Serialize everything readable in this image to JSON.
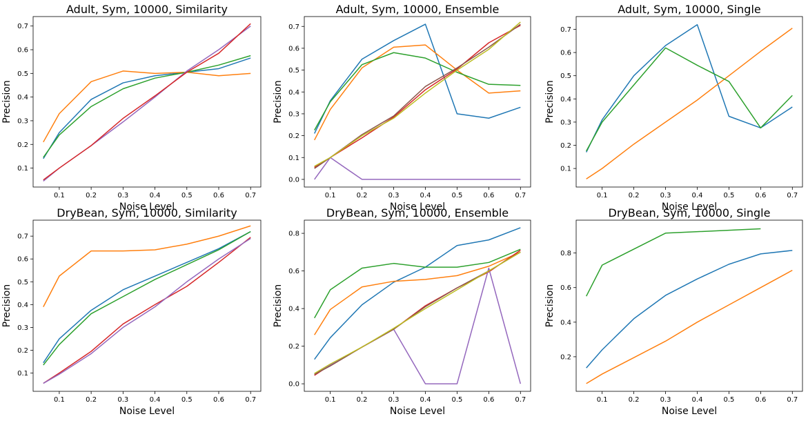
{
  "colors": {
    "blue": "#1f77b4",
    "orange": "#ff7f0e",
    "green": "#2ca02c",
    "red": "#d62728",
    "purple": "#9467bd",
    "brown": "#8c564b",
    "olive": "#bcbd22"
  },
  "chart_data": [
    {
      "type": "line",
      "title": "Adult, Sym, 10000, Similarity",
      "xlabel": "Noise Level",
      "ylabel": "Precision",
      "grid": false,
      "xlim": [
        0.018,
        0.732
      ],
      "ylim": [
        0.02,
        0.74
      ],
      "xticks": [
        0.1,
        0.2,
        0.3,
        0.4,
        0.5,
        0.6,
        0.7
      ],
      "xtick_labels": [
        "0.1",
        "0.2",
        "0.3",
        "0.4",
        "0.5",
        "0.6",
        "0.7"
      ],
      "yticks": [
        0.1,
        0.2,
        0.3,
        0.4,
        0.5,
        0.6,
        0.7
      ],
      "ytick_labels": [
        "0.1",
        "0.2",
        "0.3",
        "0.4",
        "0.5",
        "0.6",
        "0.7"
      ],
      "x": [
        0.05,
        0.1,
        0.2,
        0.3,
        0.4,
        0.5,
        0.6,
        0.7
      ],
      "series": [
        {
          "color": "#1f77b4",
          "values": [
            0.14,
            0.25,
            0.39,
            0.46,
            0.49,
            0.505,
            0.52,
            0.565
          ]
        },
        {
          "color": "#ff7f0e",
          "values": [
            0.21,
            0.33,
            0.465,
            0.51,
            0.5,
            0.505,
            0.49,
            0.5
          ]
        },
        {
          "color": "#2ca02c",
          "values": [
            0.145,
            0.24,
            0.36,
            0.435,
            0.48,
            0.505,
            0.535,
            0.575
          ]
        },
        {
          "color": "#9467bd",
          "values": [
            0.045,
            0.1,
            0.195,
            0.295,
            0.4,
            0.51,
            0.6,
            0.7
          ]
        },
        {
          "color": "#d62728",
          "values": [
            0.05,
            0.1,
            0.195,
            0.31,
            0.405,
            0.505,
            0.585,
            0.71
          ]
        }
      ]
    },
    {
      "type": "line",
      "title": "Adult, Sym, 10000, Ensemble",
      "xlabel": "Noise Level",
      "ylabel": "Precision",
      "grid": false,
      "xlim": [
        0.018,
        0.732
      ],
      "ylim": [
        -0.035,
        0.745
      ],
      "xticks": [
        0.1,
        0.2,
        0.3,
        0.4,
        0.5,
        0.6,
        0.7
      ],
      "xtick_labels": [
        "0.1",
        "0.2",
        "0.3",
        "0.4",
        "0.5",
        "0.6",
        "0.7"
      ],
      "yticks": [
        0.0,
        0.1,
        0.2,
        0.3,
        0.4,
        0.5,
        0.6,
        0.7
      ],
      "ytick_labels": [
        "0.0",
        "0.1",
        "0.2",
        "0.3",
        "0.4",
        "0.5",
        "0.6",
        "0.7"
      ],
      "x": [
        0.05,
        0.1,
        0.2,
        0.3,
        0.4,
        0.5,
        0.6,
        0.7
      ],
      "series": [
        {
          "color": "#1f77b4",
          "values": [
            0.21,
            0.36,
            0.55,
            0.635,
            0.71,
            0.3,
            0.28,
            0.33
          ]
        },
        {
          "color": "#ff7f0e",
          "values": [
            0.18,
            0.32,
            0.51,
            0.605,
            0.615,
            0.5,
            0.395,
            0.405
          ]
        },
        {
          "color": "#2ca02c",
          "values": [
            0.225,
            0.355,
            0.525,
            0.58,
            0.555,
            0.49,
            0.435,
            0.43
          ]
        },
        {
          "color": "#d62728",
          "values": [
            0.055,
            0.1,
            0.19,
            0.285,
            0.41,
            0.505,
            0.625,
            0.705
          ]
        },
        {
          "color": "#9467bd",
          "values": [
            0.0,
            0.1,
            0.0,
            0.0,
            0.0,
            0.0,
            0.0,
            0.0
          ]
        },
        {
          "color": "#8c564b",
          "values": [
            0.05,
            0.1,
            0.205,
            0.29,
            0.425,
            0.51,
            0.605,
            0.71
          ]
        },
        {
          "color": "#bcbd22",
          "values": [
            0.06,
            0.1,
            0.2,
            0.28,
            0.395,
            0.5,
            0.595,
            0.72
          ]
        }
      ]
    },
    {
      "type": "line",
      "title": "Adult, Sym, 10000, Single",
      "xlabel": "Noise Level",
      "ylabel": "Precision",
      "grid": false,
      "xlim": [
        0.018,
        0.732
      ],
      "ylim": [
        0.02,
        0.755
      ],
      "xticks": [
        0.1,
        0.2,
        0.3,
        0.4,
        0.5,
        0.6,
        0.7
      ],
      "xtick_labels": [
        "0.1",
        "0.2",
        "0.3",
        "0.4",
        "0.5",
        "0.6",
        "0.7"
      ],
      "yticks": [
        0.1,
        0.2,
        0.3,
        0.4,
        0.5,
        0.6,
        0.7
      ],
      "ytick_labels": [
        "0.1",
        "0.2",
        "0.3",
        "0.4",
        "0.5",
        "0.6",
        "0.7"
      ],
      "x": [
        0.05,
        0.1,
        0.2,
        0.3,
        0.4,
        0.5,
        0.6,
        0.7
      ],
      "series": [
        {
          "color": "#1f77b4",
          "values": [
            0.17,
            0.31,
            0.5,
            0.63,
            0.72,
            0.325,
            0.275,
            0.365
          ]
        },
        {
          "color": "#ff7f0e",
          "values": [
            0.055,
            0.1,
            0.205,
            0.3,
            0.395,
            0.5,
            0.605,
            0.705
          ]
        },
        {
          "color": "#2ca02c",
          "values": [
            0.175,
            0.3,
            0.46,
            0.62,
            0.545,
            0.475,
            0.275,
            0.415
          ]
        }
      ]
    },
    {
      "type": "line",
      "title": "DryBean, Sym, 10000, Similarity",
      "xlabel": "Noise Level",
      "ylabel": "Precision",
      "grid": false,
      "xlim": [
        0.018,
        0.732
      ],
      "ylim": [
        0.02,
        0.77
      ],
      "xticks": [
        0.1,
        0.2,
        0.3,
        0.4,
        0.5,
        0.6,
        0.7
      ],
      "xtick_labels": [
        "0.1",
        "0.2",
        "0.3",
        "0.4",
        "0.5",
        "0.6",
        "0.7"
      ],
      "yticks": [
        0.1,
        0.2,
        0.3,
        0.4,
        0.5,
        0.6,
        0.7
      ],
      "ytick_labels": [
        "0.1",
        "0.2",
        "0.3",
        "0.4",
        "0.5",
        "0.6",
        "0.7"
      ],
      "x": [
        0.05,
        0.1,
        0.2,
        0.3,
        0.4,
        0.5,
        0.6,
        0.7
      ],
      "series": [
        {
          "color": "#1f77b4",
          "values": [
            0.145,
            0.25,
            0.375,
            0.465,
            0.525,
            0.585,
            0.645,
            0.72
          ]
        },
        {
          "color": "#ff7f0e",
          "values": [
            0.39,
            0.525,
            0.635,
            0.635,
            0.64,
            0.665,
            0.7,
            0.745
          ]
        },
        {
          "color": "#2ca02c",
          "values": [
            0.135,
            0.225,
            0.36,
            0.435,
            0.51,
            0.575,
            0.64,
            0.72
          ]
        },
        {
          "color": "#d62728",
          "values": [
            0.055,
            0.1,
            0.195,
            0.315,
            0.4,
            0.48,
            0.585,
            0.695
          ]
        },
        {
          "color": "#9467bd",
          "values": [
            0.055,
            0.095,
            0.185,
            0.3,
            0.39,
            0.5,
            0.6,
            0.69
          ]
        }
      ]
    },
    {
      "type": "line",
      "title": "DryBean, Sym, 10000, Ensemble",
      "xlabel": "Noise Level",
      "ylabel": "Precision",
      "grid": false,
      "xlim": [
        0.018,
        0.732
      ],
      "ylim": [
        -0.04,
        0.87
      ],
      "xticks": [
        0.1,
        0.2,
        0.3,
        0.4,
        0.5,
        0.6,
        0.7
      ],
      "xtick_labels": [
        "0.1",
        "0.2",
        "0.3",
        "0.4",
        "0.5",
        "0.6",
        "0.7"
      ],
      "yticks": [
        0.0,
        0.2,
        0.4,
        0.6,
        0.8
      ],
      "ytick_labels": [
        "0.0",
        "0.2",
        "0.4",
        "0.6",
        "0.8"
      ],
      "x": [
        0.05,
        0.1,
        0.2,
        0.3,
        0.4,
        0.5,
        0.6,
        0.7
      ],
      "series": [
        {
          "color": "#1f77b4",
          "values": [
            0.13,
            0.245,
            0.42,
            0.54,
            0.62,
            0.735,
            0.765,
            0.83
          ]
        },
        {
          "color": "#ff7f0e",
          "values": [
            0.26,
            0.395,
            0.515,
            0.545,
            0.555,
            0.575,
            0.625,
            0.7
          ]
        },
        {
          "color": "#2ca02c",
          "values": [
            0.35,
            0.5,
            0.615,
            0.64,
            0.62,
            0.62,
            0.645,
            0.715
          ]
        },
        {
          "color": "#d62728",
          "values": [
            0.045,
            0.1,
            0.195,
            0.29,
            0.415,
            0.51,
            0.595,
            0.71
          ]
        },
        {
          "color": "#9467bd",
          "values": [
            0.05,
            0.1,
            0.195,
            0.29,
            0.0,
            0.0,
            0.615,
            0.0
          ]
        },
        {
          "color": "#8c564b",
          "values": [
            0.05,
            0.095,
            0.195,
            0.29,
            0.41,
            0.51,
            0.6,
            0.7
          ]
        },
        {
          "color": "#bcbd22",
          "values": [
            0.055,
            0.105,
            0.195,
            0.295,
            0.4,
            0.5,
            0.6,
            0.7
          ]
        }
      ]
    },
    {
      "type": "line",
      "title": "DryBean, Sym, 10000, Single",
      "xlabel": "Noise Level",
      "ylabel": "Precision",
      "grid": false,
      "xlim": [
        0.018,
        0.732
      ],
      "ylim": [
        0.0,
        0.99
      ],
      "xticks": [
        0.1,
        0.2,
        0.3,
        0.4,
        0.5,
        0.6,
        0.7
      ],
      "xtick_labels": [
        "0.1",
        "0.2",
        "0.3",
        "0.4",
        "0.5",
        "0.6",
        "0.7"
      ],
      "yticks": [
        0.2,
        0.4,
        0.6,
        0.8
      ],
      "ytick_labels": [
        "0.2",
        "0.4",
        "0.6",
        "0.8"
      ],
      "x": [
        0.05,
        0.1,
        0.2,
        0.3,
        0.4,
        0.5,
        0.6,
        0.7
      ],
      "series": [
        {
          "color": "#1f77b4",
          "values": [
            0.135,
            0.24,
            0.42,
            0.555,
            0.65,
            0.735,
            0.795,
            0.815
          ]
        },
        {
          "color": "#ff7f0e",
          "values": [
            0.045,
            0.1,
            0.195,
            0.29,
            0.4,
            0.5,
            0.6,
            0.7
          ]
        },
        {
          "color": "#2ca02c",
          "values": [
            0.55,
            0.73,
            null,
            0.915,
            null,
            null,
            0.94,
            null
          ]
        }
      ]
    }
  ]
}
